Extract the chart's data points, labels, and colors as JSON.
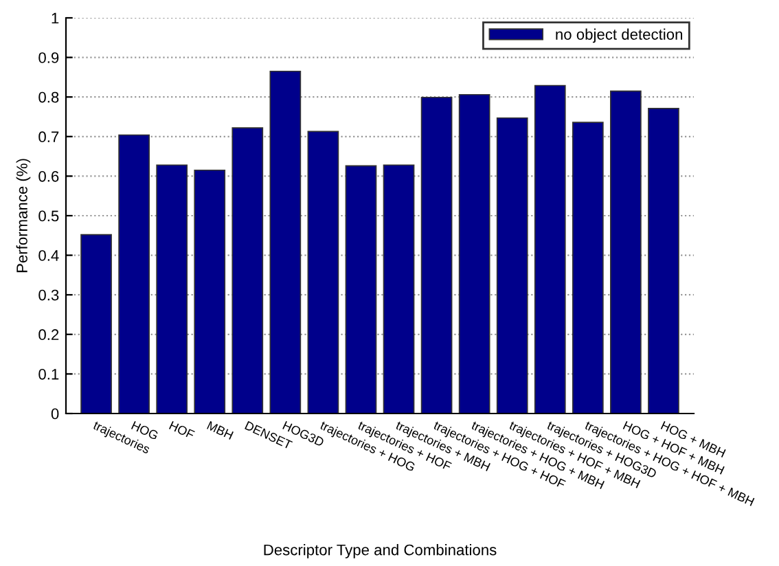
{
  "chart_data": {
    "type": "bar",
    "xlabel": "Descriptor Type and Combinations",
    "ylabel": "Performance (%)",
    "categories": [
      "trajectories",
      "HOG",
      "HOF",
      "MBH",
      "DENSET",
      "HOG3D",
      "trajectories + HOG",
      "trajectories + HOF",
      "trajectories + MBH",
      "trajectories + HOG + HOF",
      "trajectories + HOG + MBH",
      "trajectories + HOF + MBH",
      "trajectories + HOG3D",
      "trajectories + HOG + HOF + MBH",
      "HOG + HOF + MBH",
      "HOG + MBH"
    ],
    "series": [
      {
        "name": "no object detection",
        "color": "#00008b",
        "values": [
          0.452,
          0.704,
          0.628,
          0.615,
          0.722,
          0.865,
          0.713,
          0.626,
          0.628,
          0.799,
          0.806,
          0.747,
          0.829,
          0.736,
          0.815,
          0.771
        ]
      }
    ],
    "ylim": [
      0,
      1
    ],
    "yticks": [
      0,
      0.1,
      0.2,
      0.3,
      0.4,
      0.5,
      0.6,
      0.7,
      0.8,
      0.9,
      1
    ],
    "grid": "y",
    "legend": "top right"
  }
}
